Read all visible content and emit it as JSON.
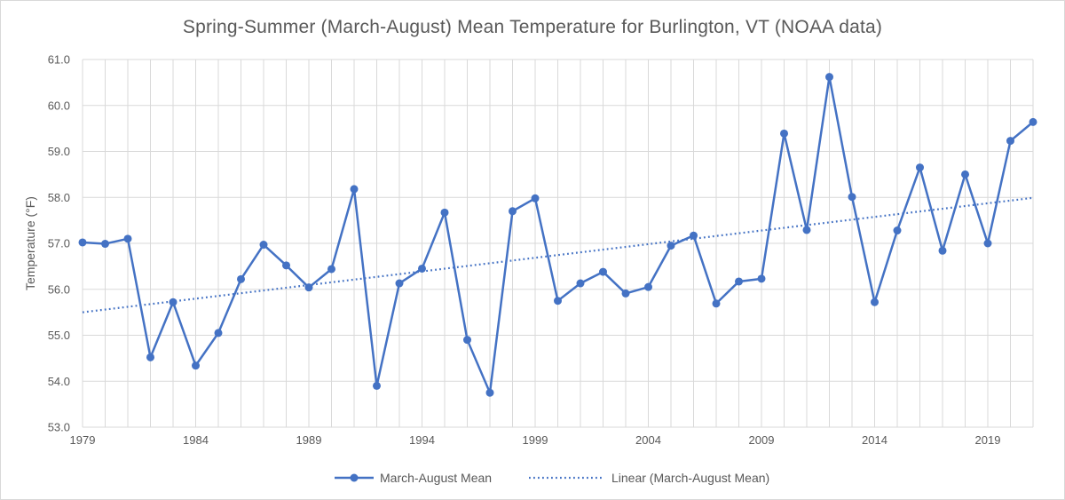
{
  "chart_data": {
    "type": "line",
    "title": "Spring-Summer (March-August) Mean Temperature for Burlington, VT (NOAA data)",
    "xlabel": "",
    "ylabel": "Temperature (°F)",
    "x": [
      1979,
      1980,
      1981,
      1982,
      1983,
      1984,
      1985,
      1986,
      1987,
      1988,
      1989,
      1990,
      1991,
      1992,
      1993,
      1994,
      1995,
      1996,
      1997,
      1998,
      1999,
      2000,
      2001,
      2002,
      2003,
      2004,
      2005,
      2006,
      2007,
      2008,
      2009,
      2010,
      2011,
      2012,
      2013,
      2014,
      2015,
      2016,
      2017,
      2018,
      2019,
      2020,
      2021
    ],
    "xticks": [
      "1979",
      "1984",
      "1989",
      "1994",
      "1999",
      "2004",
      "2009",
      "2014",
      "2019"
    ],
    "yticks": [
      "53.0",
      "54.0",
      "55.0",
      "56.0",
      "57.0",
      "58.0",
      "59.0",
      "60.0",
      "61.0"
    ],
    "xlim": [
      1979,
      2021
    ],
    "ylim": [
      53.0,
      61.0
    ],
    "grid": true,
    "legend_position": "bottom",
    "series": [
      {
        "name": "March-August Mean",
        "color": "#4472c4",
        "style": "line-with-markers",
        "values": [
          57.02,
          56.99,
          57.1,
          54.52,
          55.72,
          54.34,
          55.05,
          56.22,
          56.97,
          56.52,
          56.04,
          56.44,
          58.18,
          53.9,
          56.13,
          56.45,
          57.67,
          54.9,
          53.75,
          57.7,
          57.98,
          55.75,
          56.13,
          56.38,
          55.91,
          56.05,
          56.95,
          57.17,
          55.69,
          56.17,
          56.23,
          59.39,
          57.29,
          60.62,
          58.01,
          55.72,
          57.28,
          58.65,
          56.84,
          58.5,
          57.0,
          59.23,
          59.64
        ]
      },
      {
        "name": "Linear (March-August Mean)",
        "color": "#4472c4",
        "style": "dotted-trendline",
        "x": [
          1979,
          2021
        ],
        "values": [
          55.5,
          57.99
        ]
      }
    ]
  }
}
